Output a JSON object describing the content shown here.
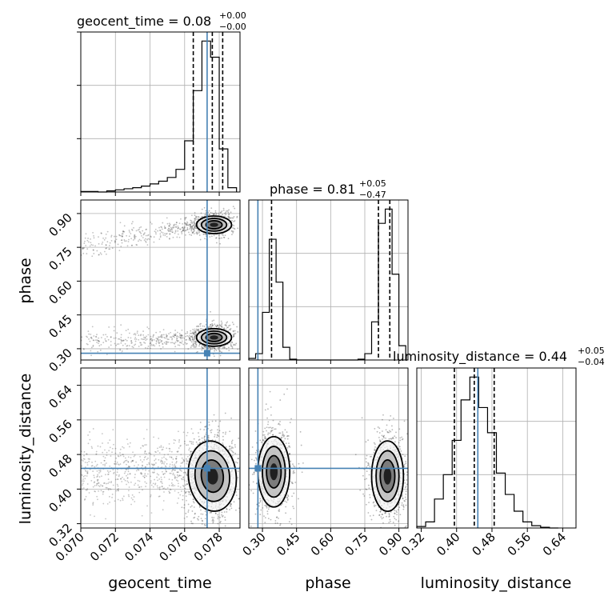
{
  "chart_data": {
    "type": "corner",
    "parameters": [
      "geocent_time",
      "phase",
      "luminosity_distance"
    ],
    "truths": {
      "geocent_time": 0.0773,
      "phase": 0.28,
      "luminosity_distance": 0.448
    },
    "panels": {
      "geocent_time": {
        "title": {
          "name": "geocent_time",
          "median": "0.08",
          "plus": "+0.00",
          "minus": "−0.00"
        },
        "xlim": [
          0.07,
          0.0792
        ],
        "quantiles": [
          0.0765,
          0.0776,
          0.0782
        ],
        "bin_edges": [
          0.07,
          0.0705,
          0.071,
          0.0715,
          0.072,
          0.0725,
          0.073,
          0.0735,
          0.074,
          0.0745,
          0.075,
          0.0755,
          0.076,
          0.0765,
          0.077,
          0.0775,
          0.078,
          0.0785,
          0.079
        ],
        "counts": [
          1,
          1,
          0,
          2,
          4,
          6,
          8,
          11,
          15,
          20,
          27,
          42,
          95,
          188,
          280,
          250,
          80,
          8
        ]
      },
      "phase": {
        "title": {
          "name": "phase",
          "median": "0.81",
          "plus": "+0.05",
          "minus": "−0.47"
        },
        "xlim": [
          0.24,
          0.94
        ],
        "quantiles": [
          0.34,
          0.81,
          0.86
        ],
        "bin_edges": [
          0.24,
          0.27,
          0.3,
          0.33,
          0.36,
          0.39,
          0.42,
          0.45,
          0.48,
          0.51,
          0.54,
          0.57,
          0.6,
          0.63,
          0.66,
          0.69,
          0.72,
          0.75,
          0.78,
          0.81,
          0.84,
          0.87,
          0.9,
          0.93
        ],
        "counts": [
          2,
          8,
          60,
          152,
          98,
          16,
          1,
          0,
          0,
          0,
          0,
          0,
          0,
          0,
          0,
          0,
          1,
          8,
          48,
          172,
          190,
          108,
          18
        ]
      },
      "luminosity_distance": {
        "title": {
          "name": "luminosity_distance",
          "median": "0.44",
          "plus": "+0.05",
          "minus": "−0.04"
        },
        "xlim": [
          0.31,
          0.67
        ],
        "quantiles": [
          0.395,
          0.44,
          0.485
        ],
        "bin_edges": [
          0.31,
          0.33,
          0.35,
          0.37,
          0.39,
          0.41,
          0.43,
          0.45,
          0.47,
          0.49,
          0.51,
          0.53,
          0.55,
          0.57,
          0.59,
          0.61,
          0.63
        ],
        "counts": [
          2,
          8,
          38,
          70,
          115,
          168,
          198,
          158,
          125,
          72,
          44,
          22,
          8,
          3,
          1,
          0
        ]
      }
    },
    "scatter_2d": [
      {
        "x": "geocent_time",
        "y": "phase",
        "ylim": [
          0.25,
          0.96
        ],
        "contour_centers": [
          [
            0.0777,
            0.85
          ],
          [
            0.0777,
            0.35
          ]
        ]
      },
      {
        "x": "geocent_time",
        "y": "luminosity_distance",
        "ylim": [
          0.31,
          0.68
        ],
        "contour_centers": [
          [
            0.0776,
            0.43
          ]
        ]
      },
      {
        "x": "phase",
        "y": "luminosity_distance",
        "ylim": [
          0.31,
          0.68
        ],
        "contour_centers": [
          [
            0.35,
            0.44
          ],
          [
            0.85,
            0.43
          ]
        ]
      }
    ],
    "ticks": {
      "geocent_time": [
        "0.070",
        "0.072",
        "0.074",
        "0.076",
        "0.078"
      ],
      "phase": [
        "0.30",
        "0.45",
        "0.60",
        "0.75",
        "0.90"
      ],
      "luminosity_distance": [
        "0.32",
        "0.40",
        "0.48",
        "0.56",
        "0.64"
      ]
    },
    "axis_labels": {
      "x": [
        "geocent_time",
        "phase",
        "luminosity_distance"
      ],
      "y": [
        "phase",
        "luminosity_distance"
      ]
    },
    "colors": {
      "truth": "#4682b4",
      "hist": "#000000",
      "grid": "#b0b0b0",
      "scatter": "#333333"
    },
    "grid": true
  }
}
